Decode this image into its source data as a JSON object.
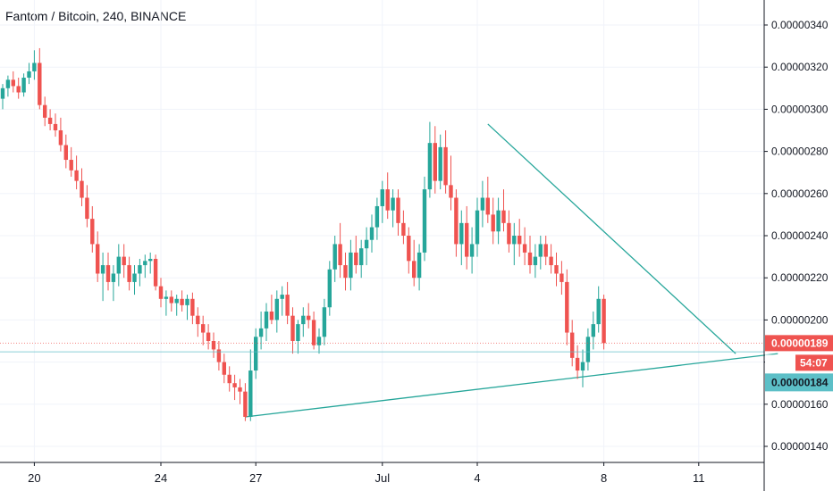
{
  "header": {
    "title": "Fantom / Bitcoin, 240, BINANCE"
  },
  "colors": {
    "up": "#26a69a",
    "down": "#ef5350",
    "trend": "#26a69a",
    "grid": "#f0f3fa",
    "axis": "#131722",
    "current_tag": "#ef5350",
    "level_tag": "#5cbfc7",
    "countdown_bg": "#ffffff"
  },
  "current_price": {
    "label": "0.00000189",
    "value": 1.89e-06
  },
  "countdown": {
    "label": "54:07"
  },
  "level_price": {
    "label": "0.00000184",
    "value": 1.84e-06
  },
  "chart_data": {
    "type": "candlestick",
    "title": "Fantom / Bitcoin, 240, BINANCE",
    "y_ticks": [
      {
        "label": "0.00000340",
        "value": 340
      },
      {
        "label": "0.00000320",
        "value": 320
      },
      {
        "label": "0.00000300",
        "value": 300
      },
      {
        "label": "0.00000280",
        "value": 280
      },
      {
        "label": "0.00000260",
        "value": 260
      },
      {
        "label": "0.00000240",
        "value": 240
      },
      {
        "label": "0.00000220",
        "value": 220
      },
      {
        "label": "0.00000200",
        "value": 200
      },
      {
        "label": "0.00000180",
        "value": 180
      },
      {
        "label": "0.00000160",
        "value": 160
      },
      {
        "label": "0.00000140",
        "value": 140
      }
    ],
    "y_unit_note": "",
    "x_ticks": [
      {
        "label": "20",
        "index": 6
      },
      {
        "label": "24",
        "index": 30
      },
      {
        "label": "27",
        "index": 48
      },
      {
        "label": "Jul",
        "index": 72
      },
      {
        "label": "4",
        "index": 90
      },
      {
        "label": "8",
        "index": 114
      },
      {
        "label": "11",
        "index": 132
      }
    ],
    "candles": [
      [
        305,
        312,
        300,
        310
      ],
      [
        310,
        316,
        306,
        314
      ],
      [
        314,
        318,
        308,
        311
      ],
      [
        311,
        315,
        305,
        308
      ],
      [
        308,
        317,
        306,
        315
      ],
      [
        315,
        322,
        312,
        318
      ],
      [
        318,
        328,
        314,
        322
      ],
      [
        322,
        329,
        300,
        302
      ],
      [
        302,
        306,
        292,
        296
      ],
      [
        296,
        300,
        290,
        293
      ],
      [
        293,
        298,
        287,
        290
      ],
      [
        290,
        296,
        280,
        283
      ],
      [
        283,
        288,
        272,
        276
      ],
      [
        276,
        282,
        268,
        271
      ],
      [
        271,
        278,
        262,
        266
      ],
      [
        266,
        272,
        254,
        258
      ],
      [
        258,
        264,
        244,
        248
      ],
      [
        248,
        254,
        232,
        236
      ],
      [
        236,
        242,
        218,
        222
      ],
      [
        222,
        232,
        209,
        226
      ],
      [
        226,
        232,
        214,
        218
      ],
      [
        218,
        226,
        209,
        222
      ],
      [
        222,
        236,
        216,
        230
      ],
      [
        230,
        236,
        220,
        226
      ],
      [
        226,
        230,
        214,
        218
      ],
      [
        218,
        226,
        212,
        222
      ],
      [
        222,
        229,
        216,
        226
      ],
      [
        226,
        231,
        220,
        228
      ],
      [
        228,
        232,
        222,
        229
      ],
      [
        229,
        231,
        214,
        216
      ],
      [
        216,
        220,
        206,
        210
      ],
      [
        210,
        214,
        202,
        211
      ],
      [
        211,
        214,
        204,
        208
      ],
      [
        208,
        212,
        202,
        210
      ],
      [
        210,
        214,
        204,
        207
      ],
      [
        207,
        212,
        200,
        210
      ],
      [
        210,
        213,
        198,
        202
      ],
      [
        202,
        206,
        192,
        198
      ],
      [
        198,
        202,
        188,
        194
      ],
      [
        194,
        198,
        186,
        190
      ],
      [
        190,
        194,
        182,
        186
      ],
      [
        186,
        190,
        176,
        180
      ],
      [
        180,
        184,
        170,
        174
      ],
      [
        174,
        178,
        166,
        170
      ],
      [
        170,
        174,
        162,
        168
      ],
      [
        168,
        172,
        160,
        166
      ],
      [
        166,
        170,
        152,
        154
      ],
      [
        154,
        186,
        152,
        176
      ],
      [
        176,
        196,
        172,
        192
      ],
      [
        192,
        204,
        186,
        196
      ],
      [
        196,
        208,
        190,
        204
      ],
      [
        204,
        212,
        198,
        200
      ],
      [
        200,
        214,
        194,
        210
      ],
      [
        210,
        216,
        202,
        212
      ],
      [
        212,
        218,
        198,
        202
      ],
      [
        202,
        206,
        184,
        190
      ],
      [
        190,
        200,
        184,
        198
      ],
      [
        198,
        206,
        192,
        202
      ],
      [
        202,
        208,
        196,
        200
      ],
      [
        200,
        204,
        186,
        188
      ],
      [
        188,
        196,
        184,
        192
      ],
      [
        192,
        210,
        188,
        206
      ],
      [
        206,
        228,
        202,
        224
      ],
      [
        224,
        240,
        218,
        236
      ],
      [
        236,
        246,
        220,
        226
      ],
      [
        226,
        232,
        214,
        220
      ],
      [
        220,
        238,
        214,
        232
      ],
      [
        232,
        240,
        222,
        226
      ],
      [
        226,
        238,
        220,
        234
      ],
      [
        234,
        244,
        226,
        238
      ],
      [
        238,
        250,
        232,
        244
      ],
      [
        244,
        258,
        238,
        254
      ],
      [
        254,
        266,
        246,
        262
      ],
      [
        262,
        270,
        248,
        252
      ],
      [
        252,
        262,
        244,
        258
      ],
      [
        258,
        262,
        240,
        246
      ],
      [
        246,
        252,
        236,
        240
      ],
      [
        240,
        244,
        222,
        228
      ],
      [
        228,
        238,
        216,
        220
      ],
      [
        220,
        236,
        214,
        232
      ],
      [
        232,
        268,
        228,
        262
      ],
      [
        262,
        294,
        258,
        284
      ],
      [
        284,
        292,
        260,
        266
      ],
      [
        266,
        288,
        262,
        282
      ],
      [
        282,
        290,
        260,
        264
      ],
      [
        264,
        278,
        252,
        258
      ],
      [
        258,
        262,
        230,
        236
      ],
      [
        236,
        252,
        226,
        246
      ],
      [
        246,
        254,
        224,
        230
      ],
      [
        230,
        244,
        222,
        236
      ],
      [
        236,
        258,
        230,
        252
      ],
      [
        252,
        266,
        244,
        258
      ],
      [
        258,
        268,
        246,
        250
      ],
      [
        250,
        258,
        236,
        242
      ],
      [
        242,
        258,
        236,
        252
      ],
      [
        252,
        262,
        242,
        246
      ],
      [
        246,
        252,
        232,
        236
      ],
      [
        236,
        246,
        226,
        240
      ],
      [
        240,
        248,
        230,
        236
      ],
      [
        236,
        244,
        226,
        232
      ],
      [
        232,
        240,
        222,
        226
      ],
      [
        226,
        236,
        220,
        230
      ],
      [
        230,
        240,
        224,
        236
      ],
      [
        236,
        240,
        226,
        230
      ],
      [
        230,
        236,
        222,
        226
      ],
      [
        226,
        232,
        216,
        222
      ],
      [
        222,
        228,
        212,
        218
      ],
      [
        218,
        224,
        188,
        194
      ],
      [
        194,
        200,
        178,
        182
      ],
      [
        182,
        188,
        172,
        176
      ],
      [
        176,
        186,
        168,
        180
      ],
      [
        180,
        196,
        176,
        192
      ],
      [
        192,
        204,
        186,
        198
      ],
      [
        198,
        216,
        194,
        210
      ],
      [
        210,
        212,
        186,
        189
      ]
    ],
    "trendlines": [
      {
        "from": [
          92,
          293
        ],
        "to": [
          139,
          184
        ]
      },
      {
        "from": [
          46,
          154
        ],
        "to": [
          147,
          184
        ]
      }
    ],
    "grid": true
  }
}
